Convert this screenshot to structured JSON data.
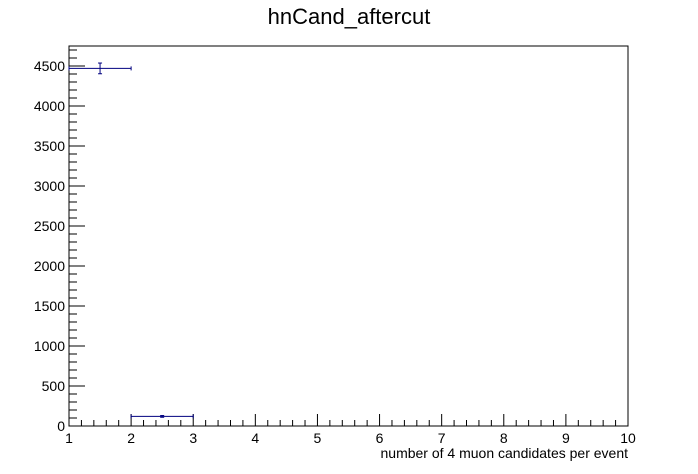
{
  "chart_data": {
    "type": "histogram",
    "title": "hnCand_aftercut",
    "xlabel": "number of 4 muon candidates per event",
    "ylabel": "",
    "xlim": [
      1,
      10
    ],
    "ylim": [
      0,
      4750
    ],
    "x_ticks": [
      "1",
      "2",
      "3",
      "4",
      "5",
      "6",
      "7",
      "8",
      "9",
      "10"
    ],
    "y_ticks": [
      "0",
      "500",
      "1000",
      "1500",
      "2000",
      "2500",
      "3000",
      "3500",
      "4000",
      "4500"
    ],
    "series": [
      {
        "color": "#00007f",
        "bins": [
          {
            "x_low": 1,
            "x_high": 2,
            "value": 4470,
            "error": 67
          },
          {
            "x_low": 2,
            "x_high": 3,
            "value": 120,
            "error": 11
          }
        ]
      }
    ],
    "grid": false,
    "legend": "none"
  }
}
